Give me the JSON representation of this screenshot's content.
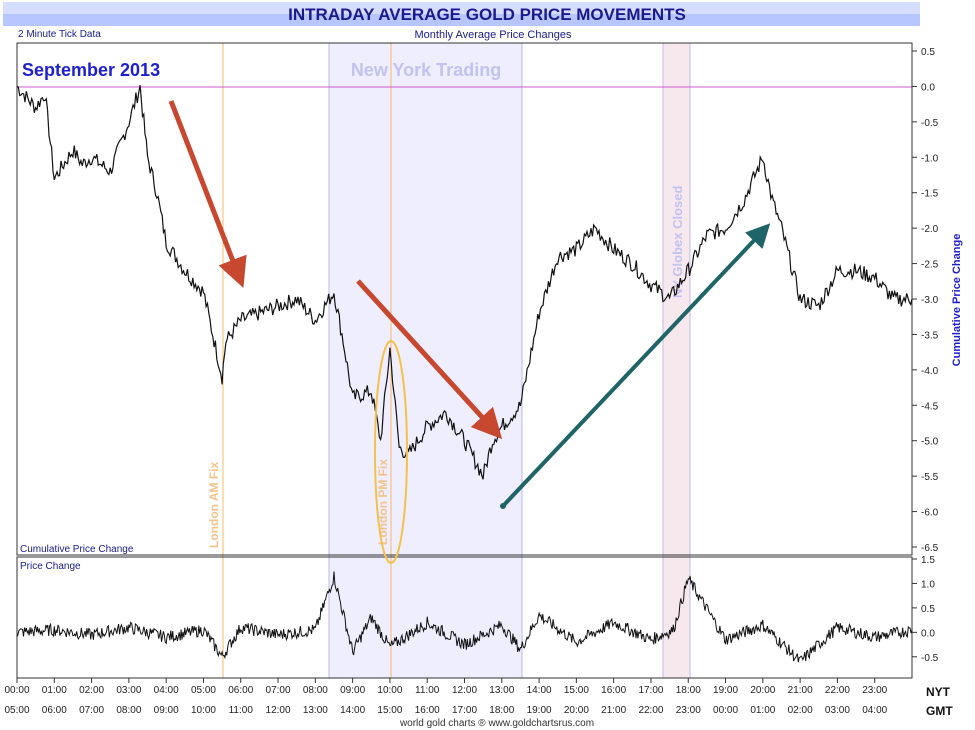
{
  "header": {
    "title": "INTRADAY AVERAGE GOLD PRICE MOVEMENTS",
    "left_note": "2 Minute Tick Data",
    "subtitle": "Monthly Average Price Changes"
  },
  "annotations": {
    "month": "September 2013",
    "ny_trading": "New York Trading",
    "london_am": "London AM Fix",
    "london_pm": "London PM Fix",
    "globex": "NY Globex Closed"
  },
  "footer": {
    "credit": "world gold charts ® www.goldchartsrus.com",
    "nyt": "NYT",
    "gmt": "GMT"
  },
  "colors": {
    "title_bg": "#b8c6ff",
    "title_text": "#1a1a8c",
    "accent_blue": "#1f1fd0",
    "ny_band": "#eeeeff",
    "globex_band": "#f7e8ee",
    "fix_line": "#f5b86b",
    "zero_line": "#d05ad0",
    "arrow_red": "#c8472f",
    "arrow_teal": "#1f6466",
    "fix_ellipse": "#f3c24a"
  },
  "chart_data": [
    {
      "type": "line",
      "title": "Cumulative Price Change",
      "ylabel": "Cumulative Price Change",
      "ylim": [
        -6.5,
        0.5
      ],
      "yticks": [
        0.5,
        0.0,
        -0.5,
        -1.0,
        -1.5,
        -2.0,
        -2.5,
        -3.0,
        -3.5,
        -4.0,
        -4.5,
        -5.0,
        -5.5,
        -6.0,
        -6.5
      ],
      "ytick_labels": [
        "0.5",
        "0.0",
        "-0.5",
        "-1.0",
        "-1.5",
        "-2.0",
        "-2.5",
        "-3.0",
        "-3.5",
        "-4.0",
        "-4.5",
        "-5.0",
        "-5.5",
        "-6.0",
        "-6.5"
      ],
      "xlim": [
        0,
        24
      ],
      "x_ticks_nyt": [
        "00:00",
        "01:00",
        "02:00",
        "03:00",
        "04:00",
        "05:00",
        "06:00",
        "07:00",
        "08:00",
        "09:00",
        "10:00",
        "11:00",
        "12:00",
        "13:00",
        "14:00",
        "15:00",
        "16:00",
        "17:00",
        "18:00",
        "19:00",
        "20:00",
        "21:00",
        "22:00",
        "23:00"
      ],
      "x_ticks_gmt": [
        "05:00",
        "06:00",
        "07:00",
        "08:00",
        "09:00",
        "10:00",
        "11:00",
        "12:00",
        "13:00",
        "14:00",
        "15:00",
        "16:00",
        "17:00",
        "18:00",
        "19:00",
        "20:00",
        "21:00",
        "22:00",
        "23:00",
        "00:00",
        "01:00",
        "02:00",
        "03:00",
        "04:00"
      ],
      "x": [
        0,
        0.5,
        0.75,
        1.0,
        1.5,
        1.75,
        2.0,
        2.5,
        3.0,
        3.3,
        3.5,
        3.75,
        4.0,
        4.5,
        5.0,
        5.25,
        5.5,
        5.6,
        6.0,
        6.5,
        7.0,
        7.5,
        8.0,
        8.5,
        8.75,
        9.0,
        9.5,
        9.75,
        10.0,
        10.25,
        10.5,
        11.0,
        11.5,
        12.0,
        12.5,
        12.75,
        13.0,
        13.5,
        14.0,
        14.5,
        15.0,
        15.5,
        16.0,
        16.5,
        17.0,
        17.5,
        18.0,
        18.5,
        19.0,
        19.5,
        20.0,
        20.25,
        20.5,
        21.0,
        21.5,
        22.0,
        22.5,
        23.0,
        23.5,
        24.0
      ],
      "values": [
        0.0,
        -0.3,
        -0.1,
        -1.3,
        -0.9,
        -1.1,
        -1.0,
        -1.2,
        -0.5,
        0.0,
        -1.0,
        -1.5,
        -2.2,
        -2.6,
        -2.9,
        -3.5,
        -4.1,
        -3.6,
        -3.3,
        -3.2,
        -3.1,
        -3.0,
        -3.3,
        -2.9,
        -3.6,
        -4.4,
        -4.3,
        -5.0,
        -3.7,
        -5.1,
        -5.2,
        -4.8,
        -4.6,
        -5.0,
        -5.5,
        -5.0,
        -4.8,
        -4.5,
        -3.2,
        -2.4,
        -2.3,
        -2.0,
        -2.3,
        -2.5,
        -2.8,
        -3.0,
        -2.6,
        -2.1,
        -2.0,
        -1.6,
        -1.0,
        -1.6,
        -2.0,
        -3.0,
        -3.1,
        -2.6,
        -2.6,
        -2.7,
        -3.0,
        -3.0
      ],
      "legend": "none",
      "grid": false
    },
    {
      "type": "line",
      "title": "Price Change",
      "ylim": [
        -0.75,
        1.5
      ],
      "yticks": [
        1.5,
        1.0,
        0.5,
        0.0,
        -0.5
      ],
      "ytick_labels": [
        "1.5",
        "1.0",
        "0.5",
        "0.0",
        "-0.5"
      ],
      "xlim": [
        0,
        24
      ],
      "x": [
        0,
        1,
        2,
        3,
        4,
        5,
        5.5,
        6,
        7,
        8,
        8.5,
        9,
        9.5,
        10,
        11,
        12,
        13,
        13.5,
        14,
        15,
        16,
        17,
        17.6,
        18,
        19,
        20,
        21,
        22,
        23,
        24
      ],
      "values": [
        0.0,
        0.05,
        -0.05,
        0.1,
        -0.1,
        0.05,
        -0.5,
        0.1,
        -0.05,
        0.05,
        1.15,
        -0.4,
        0.3,
        -0.3,
        0.2,
        -0.25,
        0.15,
        -0.35,
        0.35,
        -0.2,
        0.2,
        -0.15,
        0.05,
        1.1,
        -0.15,
        0.15,
        -0.6,
        0.1,
        -0.1,
        0.05
      ],
      "grid": false
    }
  ]
}
